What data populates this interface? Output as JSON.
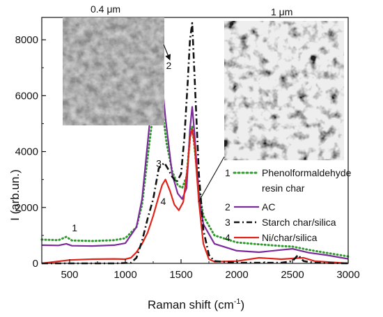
{
  "chart_data": {
    "type": "line",
    "xlabel": "Raman  shift  (cm",
    "xlabel_sup": "-1",
    "xlabel_end": ")",
    "ylabel": "I (arb.un.)",
    "xlim": [
      250,
      3000
    ],
    "ylim": [
      0,
      8800
    ],
    "xticks": [
      500,
      1000,
      1500,
      2000,
      2500,
      3000
    ],
    "yticks": [
      0,
      2000,
      4000,
      6000,
      8000
    ],
    "series": [
      {
        "id": "1",
        "name": "Phenolformaldehyde\nresin char",
        "color": "#2e9a2e",
        "style": "dotted",
        "x": [
          250,
          400,
          470,
          520,
          700,
          900,
          1000,
          1100,
          1150,
          1200,
          1250,
          1300,
          1330,
          1370,
          1420,
          1470,
          1510,
          1550,
          1580,
          1600,
          1620,
          1660,
          1700,
          1800,
          2000,
          2200,
          2400,
          2500,
          2550,
          2650,
          2800,
          3000
        ],
        "y": [
          850,
          830,
          950,
          820,
          800,
          830,
          900,
          1300,
          2100,
          3800,
          5400,
          6100,
          5600,
          4300,
          3300,
          2800,
          2700,
          3100,
          4500,
          4900,
          4200,
          2600,
          1700,
          1000,
          750,
          680,
          620,
          600,
          560,
          480,
          380,
          250
        ]
      },
      {
        "id": "2",
        "name": "AC",
        "color": "#7b2a9a",
        "style": "solid",
        "x": [
          250,
          400,
          470,
          520,
          700,
          900,
          1000,
          1100,
          1150,
          1200,
          1250,
          1300,
          1320,
          1360,
          1420,
          1470,
          1510,
          1550,
          1580,
          1600,
          1620,
          1660,
          1700,
          1800,
          2000,
          2200,
          2400,
          2500,
          2550,
          2650,
          2800,
          3000
        ],
        "y": [
          650,
          640,
          700,
          630,
          620,
          650,
          720,
          1300,
          2300,
          4300,
          6300,
          7300,
          6900,
          5200,
          3200,
          2500,
          2300,
          2700,
          4800,
          5600,
          4700,
          2400,
          1400,
          700,
          450,
          400,
          480,
          520,
          470,
          380,
          300,
          160
        ]
      },
      {
        "id": "3",
        "name": "Starch char/silica",
        "color": "#111111",
        "style": "dashdot",
        "x": [
          250,
          900,
          1050,
          1100,
          1150,
          1200,
          1250,
          1300,
          1350,
          1380,
          1420,
          1460,
          1500,
          1530,
          1560,
          1580,
          1600,
          1620,
          1660,
          1700,
          1750,
          1800,
          2000,
          2400,
          2500,
          2550,
          2600,
          2700,
          3000
        ],
        "y": [
          0,
          0,
          20,
          200,
          800,
          1600,
          2300,
          3400,
          3600,
          3400,
          3100,
          2900,
          3200,
          4500,
          6500,
          8000,
          8600,
          6800,
          3200,
          1200,
          300,
          80,
          20,
          20,
          80,
          300,
          80,
          20,
          0
        ]
      },
      {
        "id": "4",
        "name": "Ni/char/silica",
        "color": "#e0241a",
        "style": "solid",
        "x": [
          250,
          500,
          700,
          900,
          1000,
          1050,
          1100,
          1150,
          1200,
          1250,
          1300,
          1330,
          1360,
          1400,
          1440,
          1480,
          1520,
          1560,
          1580,
          1600,
          1620,
          1660,
          1700,
          1750,
          1800,
          2000,
          2200,
          2400,
          2600,
          2700,
          3000
        ],
        "y": [
          0,
          120,
          150,
          160,
          150,
          200,
          400,
          700,
          1100,
          1700,
          2400,
          2800,
          3000,
          2600,
          2100,
          1900,
          2200,
          3500,
          4500,
          4800,
          4300,
          2200,
          700,
          150,
          60,
          80,
          200,
          150,
          200,
          80,
          0
        ]
      }
    ],
    "curve_labels": [
      {
        "text": "1",
        "x": 545,
        "y": 1150
      },
      {
        "text": "2",
        "x": 1390,
        "y": 6950
      },
      {
        "text": "3",
        "x": 1300,
        "y": 3450
      },
      {
        "text": "4",
        "x": 1340,
        "y": 2100
      }
    ],
    "legend": {
      "placement": "right",
      "entries": [
        {
          "num": "1",
          "lines": [
            "Phenolformaldehyde",
            "resin char"
          ]
        },
        {
          "num": "2",
          "lines": [
            "AC"
          ]
        },
        {
          "num": "3",
          "lines": [
            "Starch char/silica"
          ]
        },
        {
          "num": "4",
          "lines": [
            "Ni/char/silica"
          ]
        }
      ]
    },
    "insets": [
      {
        "label": "0.4 μm",
        "tone": "light",
        "points_to": {
          "x": 1270,
          "y": 7600
        }
      },
      {
        "label": "1 μm",
        "tone": "dark",
        "points_to": {
          "x": 1510,
          "y": 2300
        }
      }
    ]
  }
}
